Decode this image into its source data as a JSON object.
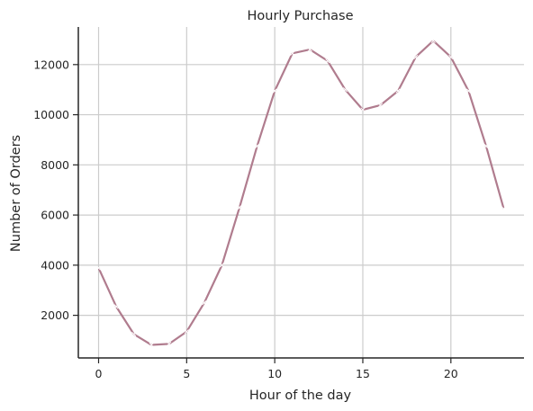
{
  "chart_data": {
    "type": "line",
    "title": "Hourly Purchase",
    "xlabel": "Hour of the day",
    "ylabel": "Number of Orders",
    "xlim": [
      -1.15,
      24.15
    ],
    "ylim": [
      300,
      13500
    ],
    "x_ticks": [
      0,
      5,
      10,
      15,
      20
    ],
    "y_ticks": [
      2000,
      4000,
      6000,
      8000,
      10000,
      12000
    ],
    "grid": true,
    "series": [
      {
        "color": "#b07c8e",
        "marker": "x",
        "x": [
          0,
          1,
          2,
          3,
          4,
          5,
          6,
          7,
          8,
          9,
          10,
          11,
          12,
          13,
          14,
          15,
          16,
          17,
          18,
          19,
          20,
          21,
          22,
          23
        ],
        "values": [
          3890,
          2350,
          1250,
          820,
          860,
          1350,
          2500,
          4000,
          6300,
          8750,
          10950,
          12450,
          12600,
          12150,
          11000,
          10200,
          10380,
          10950,
          12300,
          12950,
          12300,
          10950,
          8750,
          6250
        ]
      }
    ]
  }
}
